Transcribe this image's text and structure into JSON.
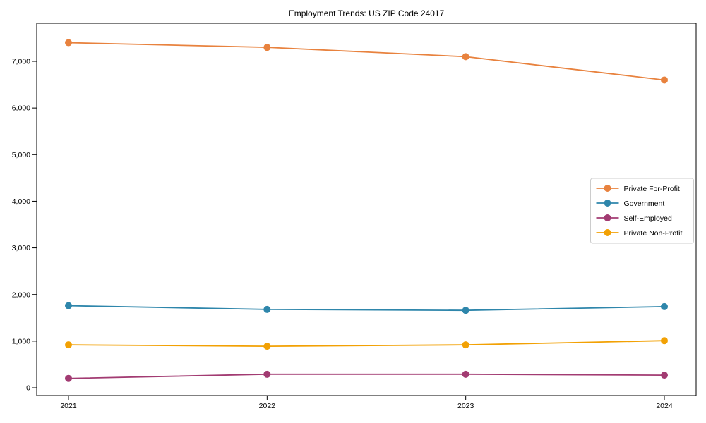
{
  "chart_data": {
    "type": "line",
    "title": "Employment Trends: US ZIP Code 24017",
    "x": [
      "2021",
      "2022",
      "2023",
      "2024"
    ],
    "series": [
      {
        "name": "Private For-Profit",
        "color": "#E8823E",
        "values": [
          7400,
          7300,
          7100,
          6600
        ]
      },
      {
        "name": "Government",
        "color": "#2E86AB",
        "values": [
          1760,
          1680,
          1660,
          1740
        ]
      },
      {
        "name": "Self-Employed",
        "color": "#A23B72",
        "values": [
          200,
          290,
          290,
          270
        ]
      },
      {
        "name": "Private Non-Profit",
        "color": "#F2A104",
        "values": [
          920,
          890,
          920,
          1010
        ]
      }
    ],
    "xlabel": "",
    "ylabel": "",
    "ylim": [
      -170,
      7820
    ],
    "yticks": [
      0,
      1000,
      2000,
      3000,
      4000,
      5000,
      6000,
      7000
    ],
    "ytick_labels": [
      "0",
      "1,000",
      "2,000",
      "3,000",
      "4,000",
      "5,000",
      "6,000",
      "7,000"
    ],
    "xtick_labels": [
      "2021",
      "2022",
      "2023",
      "2024"
    ],
    "grid": false,
    "legend_position": "center right",
    "marker": "circle"
  }
}
